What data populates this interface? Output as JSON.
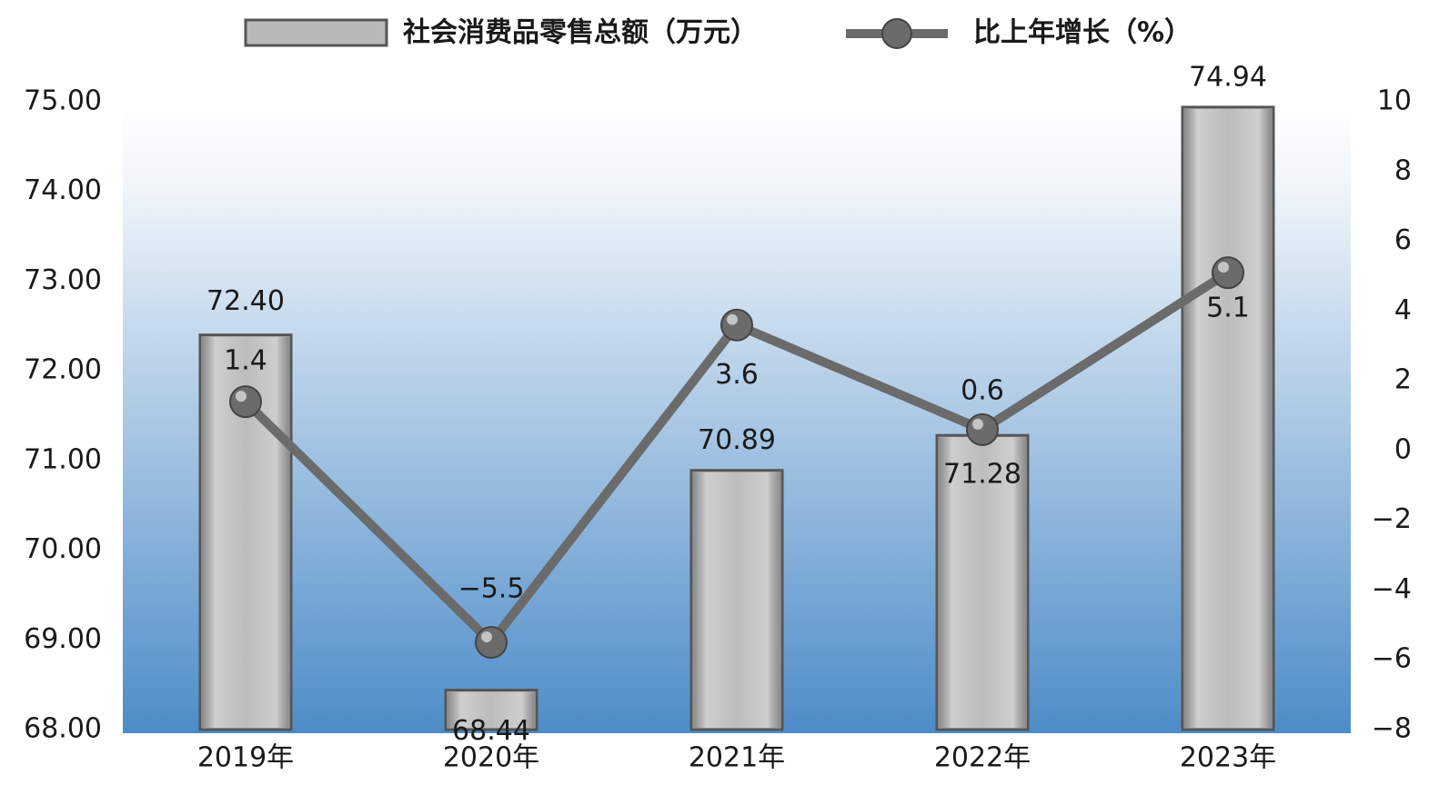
{
  "chart_data": {
    "type": "bar_line",
    "categories": [
      "2019年",
      "2020年",
      "2021年",
      "2022年",
      "2023年"
    ],
    "series": [
      {
        "name": "社会消费品零售总额（万元）",
        "type": "bar",
        "color": "#b9b9b9",
        "values": [
          72.4,
          68.44,
          70.89,
          71.28,
          74.94
        ],
        "value_labels": [
          "72.40",
          "68.44",
          "70.89",
          "71.28",
          "74.94"
        ]
      },
      {
        "name": "比上年增长（%）",
        "type": "line",
        "axis": "y2",
        "color": "#6b6b6b",
        "values": [
          1.4,
          -5.5,
          3.6,
          0.6,
          5.1
        ],
        "value_labels": [
          "1.4",
          "−5.5",
          "3.6",
          "0.6",
          "5.1"
        ]
      }
    ],
    "ylim": [
      68,
      75
    ],
    "yticks": [
      {
        "value": 68,
        "label": "68.00"
      },
      {
        "value": 69,
        "label": "69.00"
      },
      {
        "value": 70,
        "label": "70.00"
      },
      {
        "value": 71,
        "label": "71.00"
      },
      {
        "value": 72,
        "label": "72.00"
      },
      {
        "value": 73,
        "label": "73.00"
      },
      {
        "value": 74,
        "label": "74.00"
      },
      {
        "value": 75,
        "label": "75.00"
      }
    ],
    "y2lim": [
      -8,
      10
    ],
    "y2ticks": [
      {
        "value": -8,
        "label": "−8"
      },
      {
        "value": -6,
        "label": "−6"
      },
      {
        "value": -4,
        "label": "−4"
      },
      {
        "value": -2,
        "label": "−2"
      },
      0,
      2,
      4,
      6,
      8,
      10
    ],
    "legend": "top"
  }
}
